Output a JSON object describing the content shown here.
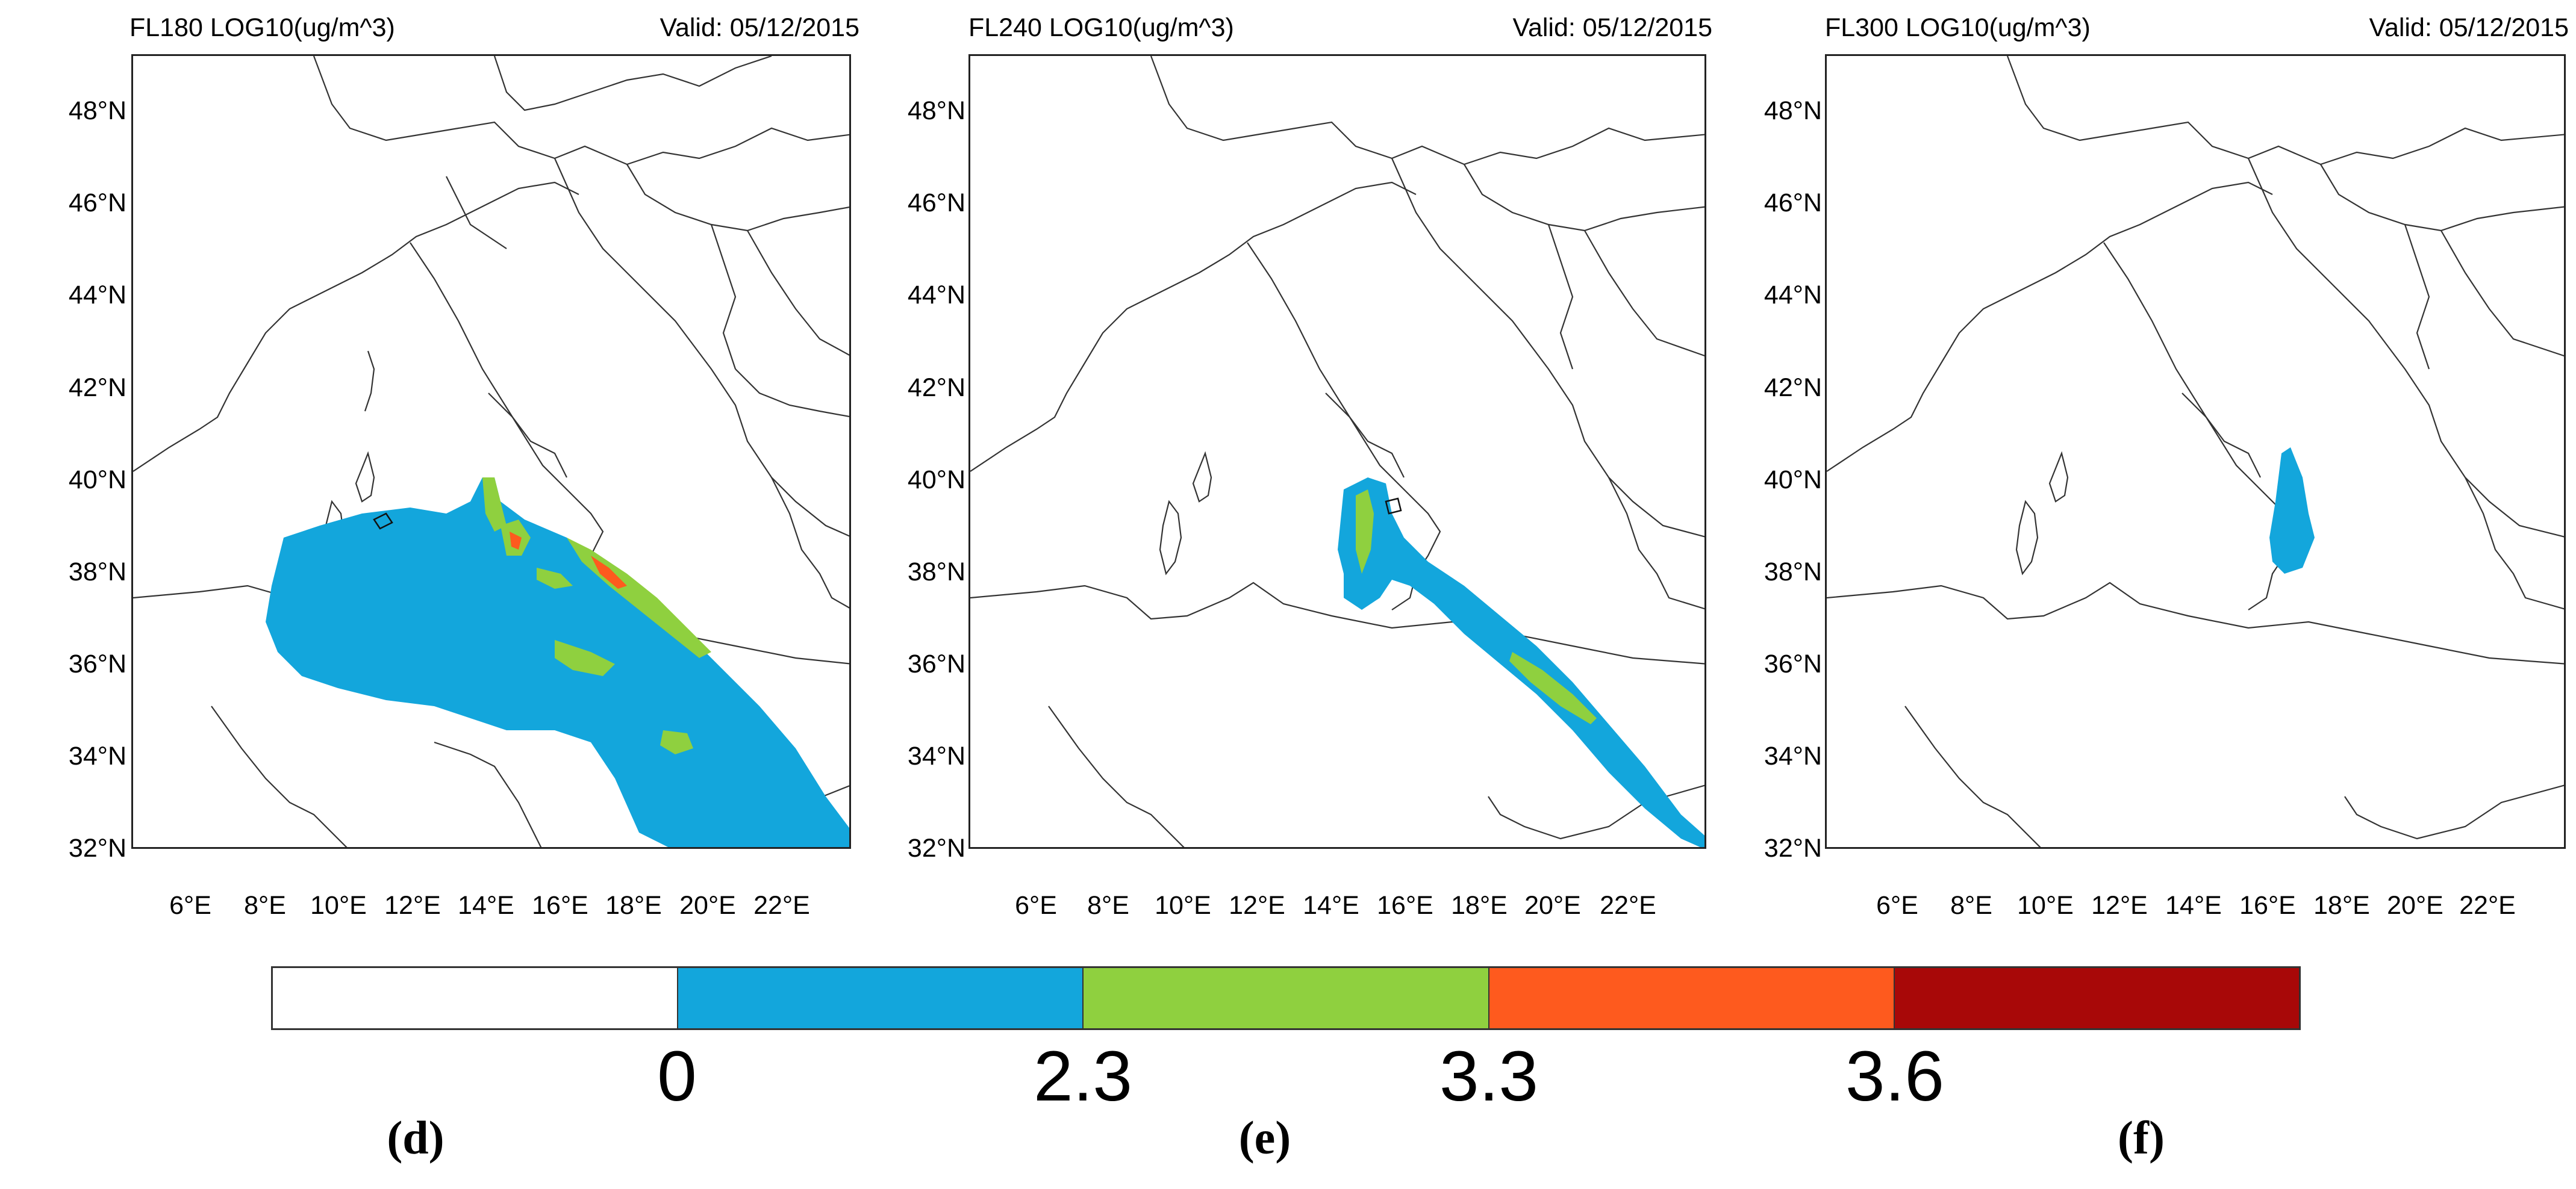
{
  "panels": [
    {
      "level_title": "FL180 LOG10(ug/m^3)",
      "valid": "Valid: 05/12/2015",
      "letter": "(d)"
    },
    {
      "level_title": "FL240 LOG10(ug/m^3)",
      "valid": "Valid: 05/12/2015",
      "letter": "(e)"
    },
    {
      "level_title": "FL300 LOG10(ug/m^3)",
      "valid": "Valid: 05/12/2015",
      "letter": "(f)"
    }
  ],
  "lat_labels": [
    "48°N",
    "46°N",
    "44°N",
    "42°N",
    "40°N",
    "38°N",
    "36°N",
    "34°N",
    "32°N"
  ],
  "lon_labels": [
    "6°E",
    "8°E",
    "10°E",
    "12°E",
    "14°E",
    "16°E",
    "18°E",
    "20°E",
    "22°E"
  ],
  "colorbar": {
    "colors": [
      "#ffffff",
      "#13a6dc",
      "#8fd03f",
      "#fe5a1e",
      "#a80808"
    ],
    "tick_labels": [
      "0",
      "2.3",
      "3.3",
      "3.6"
    ]
  }
}
